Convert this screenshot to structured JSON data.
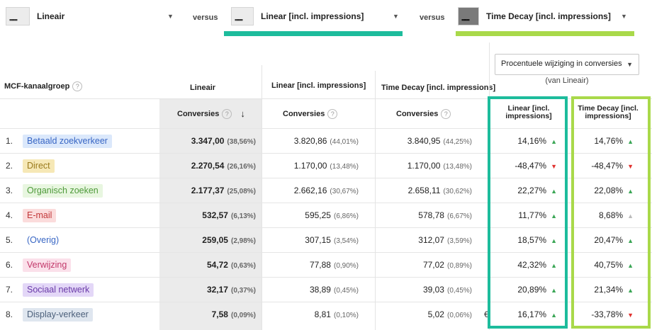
{
  "models": {
    "model_1": {
      "name": "Lineair"
    },
    "versus_1": "versus",
    "model_2": {
      "name": "Linear [incl. impressions]"
    },
    "versus_2": "versus",
    "model_3": {
      "name": "Time Decay [incl. impressions]"
    }
  },
  "colors": {
    "teal": "#1dbc9c",
    "lime": "#a9d94a",
    "up": "#3aa655",
    "down": "#e0322f"
  },
  "change_select": {
    "label": "Procentuele wijziging in conversies",
    "sub": "(van Lineair)"
  },
  "headers": {
    "dimension": "MCF-kanaalgroep",
    "col1": "Lineair",
    "col2": "Linear [incl. impressions]",
    "col3": "Time Decay [incl. impressions]",
    "metric": "Conversies",
    "chg1": "Linear [incl. impressions]",
    "chg2": "Time Decay [incl. impressions]"
  },
  "rows": [
    {
      "num": "1.",
      "channel": "Betaald zoekverkeer",
      "chip_bg": "#dbe8fb",
      "chip_fg": "#3866c4",
      "v1": "3.347,00",
      "p1": "(38,56%)",
      "v2": "3.820,86",
      "p2": "(44,01%)",
      "v3": "3.840,95",
      "p3": "(44,25%)",
      "c1": "14,16%",
      "c1dir": "up",
      "c2": "14,76%",
      "c2dir": "up"
    },
    {
      "num": "2.",
      "channel": "Direct",
      "chip_bg": "#f6e8b6",
      "chip_fg": "#9a7a1c",
      "v1": "2.270,54",
      "p1": "(26,16%)",
      "v2": "1.170,00",
      "p2": "(13,48%)",
      "v3": "1.170,00",
      "p3": "(13,48%)",
      "c1": "-48,47%",
      "c1dir": "down",
      "c2": "-48,47%",
      "c2dir": "down"
    },
    {
      "num": "3.",
      "channel": "Organisch zoeken",
      "chip_bg": "#e8f6e0",
      "chip_fg": "#4e9a3a",
      "v1": "2.177,37",
      "p1": "(25,08%)",
      "v2": "2.662,16",
      "p2": "(30,67%)",
      "v3": "2.658,11",
      "p3": "(30,62%)",
      "c1": "22,27%",
      "c1dir": "up",
      "c2": "22,08%",
      "c2dir": "up"
    },
    {
      "num": "4.",
      "channel": "E-mail",
      "chip_bg": "#fbdcdc",
      "chip_fg": "#c2383a",
      "v1": "532,57",
      "p1": "(6,13%)",
      "v2": "595,25",
      "p2": "(6,86%)",
      "v3": "578,78",
      "p3": "(6,67%)",
      "c1": "11,77%",
      "c1dir": "up",
      "c2": "8,68%",
      "c2dir": "neutral"
    },
    {
      "num": "5.",
      "channel": "(Overig)",
      "chip_bg": "#ffffff",
      "chip_fg": "#3866c4",
      "v1": "259,05",
      "p1": "(2,98%)",
      "v2": "307,15",
      "p2": "(3,54%)",
      "v3": "312,07",
      "p3": "(3,59%)",
      "c1": "18,57%",
      "c1dir": "up",
      "c2": "20,47%",
      "c2dir": "up"
    },
    {
      "num": "6.",
      "channel": "Verwijzing",
      "chip_bg": "#fbe0ea",
      "chip_fg": "#c2386a",
      "v1": "54,72",
      "p1": "(0,63%)",
      "v2": "77,88",
      "p2": "(0,90%)",
      "v3": "77,02",
      "p3": "(0,89%)",
      "c1": "42,32%",
      "c1dir": "up",
      "c2": "40,75%",
      "c2dir": "up"
    },
    {
      "num": "7.",
      "channel": "Sociaal netwerk",
      "chip_bg": "#e3d7f7",
      "chip_fg": "#6a3aa8",
      "v1": "32,17",
      "p1": "(0,37%)",
      "v2": "38,89",
      "p2": "(0,45%)",
      "v3": "39,03",
      "p3": "(0,45%)",
      "c1": "20,89%",
      "c1dir": "up",
      "c2": "21,34%",
      "c2dir": "up"
    },
    {
      "num": "8.",
      "channel": "Display-verkeer",
      "chip_bg": "#dfe6ef",
      "chip_fg": "#4b5f7a",
      "v1": "7,58",
      "p1": "(0,09%)",
      "v2": "8,81",
      "p2": "(0,10%)",
      "v3": "5,02",
      "p3": "(0,06%)",
      "c1": "16,17%",
      "c1dir": "up",
      "c2": "-33,78%",
      "c2dir": "down"
    }
  ],
  "icons": {
    "sort": "arrow-down-icon",
    "help": "help-circle-icon",
    "dropdown": "caret-down-icon"
  },
  "symbols": {
    "help": "?",
    "sort": "↓",
    "caret": "▼",
    "up": "▲",
    "down": "▼",
    "euro": "€"
  }
}
